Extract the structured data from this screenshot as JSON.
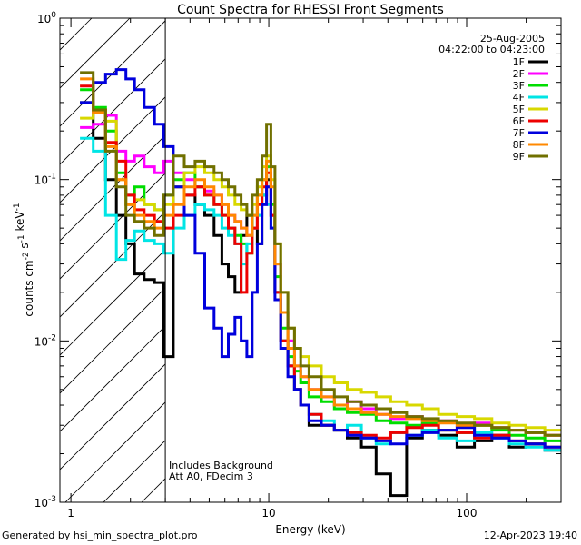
{
  "chart_data": {
    "type": "line",
    "title": "Count Spectra for RHESSI Front Segments",
    "xlabel": "Energy (keV)",
    "ylabel": "counts cm^-2 s^-1 keV^-1",
    "xscale": "log",
    "yscale": "log",
    "xlim": [
      0.88,
      300
    ],
    "ylim": [
      0.001,
      1.0
    ],
    "x_ticks": [
      {
        "value": 1,
        "label": "1"
      },
      {
        "value": 10,
        "label": "10"
      },
      {
        "value": 100,
        "label": "100"
      }
    ],
    "y_ticks": [
      {
        "value": 0.001,
        "mant": "10",
        "exp": "-3"
      },
      {
        "value": 0.01,
        "mant": "10",
        "exp": "-2"
      },
      {
        "value": 0.1,
        "mant": "10",
        "exp": "-1"
      },
      {
        "value": 1,
        "mant": "10",
        "exp": "0"
      }
    ],
    "date": "25-Aug-2005",
    "time_range": "04:22:00 to 04:23:00",
    "annotations": [
      "Includes Background",
      "Att A0, FDecim 3"
    ],
    "shaded_region_x": [
      0.88,
      3
    ],
    "series": [
      {
        "name": "1F",
        "color": "#000000",
        "x": [
          1.2,
          1.4,
          1.6,
          1.8,
          2.0,
          2.2,
          2.5,
          2.8,
          3.1,
          3.5,
          4,
          4.5,
          5,
          5.6,
          6,
          6.5,
          7,
          7.5,
          8,
          8.5,
          9,
          9.5,
          10,
          10.5,
          11,
          12,
          13,
          14,
          15,
          17,
          20,
          23,
          27,
          32,
          38,
          45,
          55,
          65,
          80,
          100,
          120,
          150,
          180,
          220,
          280
        ],
        "y": [
          0.3,
          0.18,
          0.1,
          0.06,
          0.04,
          0.026,
          0.024,
          0.023,
          0.008,
          0.09,
          0.08,
          0.07,
          0.06,
          0.045,
          0.03,
          0.025,
          0.02,
          0.045,
          0.06,
          0.05,
          0.04,
          0.08,
          0.1,
          0.06,
          0.02,
          0.01,
          0.007,
          0.005,
          0.004,
          0.003,
          0.003,
          0.0028,
          0.0025,
          0.0022,
          0.0015,
          0.0011,
          0.0025,
          0.0028,
          0.0026,
          0.0022,
          0.0024,
          0.0026,
          0.0022,
          0.0023,
          0.0021
        ]
      },
      {
        "name": "2F",
        "color": "#ff00ff",
        "x": [
          1.2,
          1.4,
          1.6,
          1.8,
          2.0,
          2.2,
          2.5,
          2.8,
          3.1,
          3.5,
          4,
          4.5,
          5,
          5.6,
          6,
          6.5,
          7,
          7.5,
          8,
          8.5,
          9,
          9.5,
          10,
          10.5,
          11,
          12,
          13,
          14,
          15,
          17,
          20,
          23,
          27,
          32,
          38,
          45,
          55,
          65,
          80,
          100,
          120,
          150,
          180,
          220,
          280
        ],
        "y": [
          0.21,
          0.22,
          0.25,
          0.15,
          0.13,
          0.14,
          0.12,
          0.11,
          0.13,
          0.11,
          0.1,
          0.09,
          0.085,
          0.08,
          0.07,
          0.06,
          0.055,
          0.05,
          0.045,
          0.05,
          0.06,
          0.07,
          0.09,
          0.06,
          0.03,
          0.015,
          0.01,
          0.007,
          0.006,
          0.005,
          0.0045,
          0.004,
          0.0042,
          0.0038,
          0.0035,
          0.0033,
          0.0034,
          0.0031,
          0.0032,
          0.003,
          0.0031,
          0.0029,
          0.0028,
          0.0027,
          0.0026
        ]
      },
      {
        "name": "3F",
        "color": "#00dd00",
        "x": [
          1.2,
          1.4,
          1.6,
          1.8,
          2.0,
          2.2,
          2.5,
          2.8,
          3.1,
          3.5,
          4,
          4.5,
          5,
          5.6,
          6,
          6.5,
          7,
          7.5,
          8,
          8.5,
          9,
          9.5,
          10,
          10.5,
          11,
          12,
          13,
          14,
          15,
          17,
          20,
          23,
          27,
          32,
          38,
          45,
          55,
          65,
          80,
          100,
          120,
          150,
          180,
          220,
          280
        ],
        "y": [
          0.36,
          0.28,
          0.2,
          0.11,
          0.08,
          0.09,
          0.07,
          0.065,
          0.08,
          0.1,
          0.11,
          0.09,
          0.08,
          0.07,
          0.06,
          0.05,
          0.045,
          0.04,
          0.035,
          0.06,
          0.08,
          0.1,
          0.12,
          0.07,
          0.025,
          0.012,
          0.008,
          0.0065,
          0.0055,
          0.0045,
          0.0042,
          0.0038,
          0.0036,
          0.0035,
          0.0032,
          0.0031,
          0.003,
          0.0031,
          0.0028,
          0.0027,
          0.003,
          0.0028,
          0.0026,
          0.0025,
          0.0024
        ]
      },
      {
        "name": "4F",
        "color": "#00e5e5",
        "x": [
          1.2,
          1.4,
          1.6,
          1.8,
          2.0,
          2.2,
          2.5,
          2.8,
          3.1,
          3.5,
          4,
          4.5,
          5,
          5.6,
          6,
          6.5,
          7,
          7.5,
          8,
          8.5,
          9,
          9.5,
          10,
          10.5,
          11,
          12,
          13,
          14,
          15,
          17,
          20,
          23,
          27,
          32,
          38,
          45,
          55,
          65,
          80,
          100,
          120,
          150,
          180,
          220,
          280
        ],
        "y": [
          0.18,
          0.15,
          0.06,
          0.032,
          0.042,
          0.048,
          0.042,
          0.04,
          0.035,
          0.05,
          0.06,
          0.07,
          0.065,
          0.06,
          0.05,
          0.045,
          0.04,
          0.03,
          0.04,
          0.05,
          0.06,
          0.08,
          0.07,
          0.05,
          0.02,
          0.01,
          0.007,
          0.005,
          0.004,
          0.0035,
          0.0032,
          0.0028,
          0.003,
          0.0025,
          0.0023,
          0.0027,
          0.0026,
          0.0028,
          0.0025,
          0.0024,
          0.0027,
          0.0025,
          0.0023,
          0.0022,
          0.0021
        ]
      },
      {
        "name": "5F",
        "color": "#d8d800",
        "x": [
          1.2,
          1.4,
          1.6,
          1.8,
          2.0,
          2.2,
          2.5,
          2.8,
          3.1,
          3.5,
          4,
          4.5,
          5,
          5.6,
          6,
          6.5,
          7,
          7.5,
          8,
          8.5,
          9,
          9.5,
          10,
          10.5,
          11,
          12,
          13,
          14,
          15,
          17,
          20,
          23,
          27,
          32,
          38,
          45,
          55,
          65,
          80,
          100,
          120,
          150,
          180,
          220,
          280
        ],
        "y": [
          0.24,
          0.27,
          0.23,
          0.1,
          0.07,
          0.075,
          0.07,
          0.065,
          0.07,
          0.09,
          0.11,
          0.12,
          0.11,
          0.1,
          0.09,
          0.08,
          0.07,
          0.065,
          0.06,
          0.07,
          0.09,
          0.12,
          0.14,
          0.1,
          0.04,
          0.02,
          0.012,
          0.009,
          0.008,
          0.007,
          0.006,
          0.0055,
          0.005,
          0.0048,
          0.0045,
          0.0042,
          0.004,
          0.0038,
          0.0035,
          0.0034,
          0.0033,
          0.0031,
          0.003,
          0.0029,
          0.0028
        ]
      },
      {
        "name": "6F",
        "color": "#ee0000",
        "x": [
          1.2,
          1.4,
          1.6,
          1.8,
          2.0,
          2.2,
          2.5,
          2.8,
          3.1,
          3.5,
          4,
          4.5,
          5,
          5.6,
          6,
          6.5,
          7,
          7.5,
          8,
          8.5,
          9,
          9.5,
          10,
          10.5,
          11,
          12,
          13,
          14,
          15,
          17,
          20,
          23,
          27,
          32,
          38,
          45,
          55,
          65,
          80,
          100,
          120,
          150,
          180,
          220,
          280
        ],
        "y": [
          0.38,
          0.27,
          0.17,
          0.13,
          0.08,
          0.065,
          0.06,
          0.055,
          0.05,
          0.06,
          0.08,
          0.09,
          0.08,
          0.07,
          0.06,
          0.05,
          0.04,
          0.02,
          0.035,
          0.05,
          0.07,
          0.09,
          0.11,
          0.06,
          0.02,
          0.01,
          0.007,
          0.005,
          0.004,
          0.0035,
          0.003,
          0.0028,
          0.0027,
          0.0026,
          0.0025,
          0.0027,
          0.0029,
          0.003,
          0.0028,
          0.0027,
          0.0025,
          0.0026,
          0.0024,
          0.0023,
          0.0022
        ]
      },
      {
        "name": "7F",
        "color": "#0000dd",
        "x": [
          1.2,
          1.4,
          1.6,
          1.8,
          2.0,
          2.2,
          2.5,
          2.8,
          3.1,
          3.5,
          4,
          4.5,
          5,
          5.6,
          6,
          6.5,
          7,
          7.5,
          8,
          8.5,
          9,
          9.5,
          10,
          10.5,
          11,
          12,
          13,
          14,
          15,
          17,
          20,
          23,
          27,
          32,
          38,
          45,
          55,
          65,
          80,
          100,
          120,
          150,
          180,
          220,
          280
        ],
        "y": [
          0.3,
          0.4,
          0.45,
          0.48,
          0.42,
          0.36,
          0.28,
          0.22,
          0.16,
          0.09,
          0.06,
          0.035,
          0.016,
          0.012,
          0.008,
          0.011,
          0.014,
          0.01,
          0.008,
          0.02,
          0.04,
          0.07,
          0.09,
          0.05,
          0.018,
          0.009,
          0.006,
          0.005,
          0.004,
          0.0032,
          0.003,
          0.0028,
          0.0026,
          0.0025,
          0.0024,
          0.0023,
          0.0026,
          0.0027,
          0.0028,
          0.0029,
          0.0026,
          0.0025,
          0.0024,
          0.0023,
          0.0022
        ]
      },
      {
        "name": "8F",
        "color": "#ff8800",
        "x": [
          1.2,
          1.4,
          1.6,
          1.8,
          2.0,
          2.2,
          2.5,
          2.8,
          3.1,
          3.5,
          4,
          4.5,
          5,
          5.6,
          6,
          6.5,
          7,
          7.5,
          8,
          8.5,
          9,
          9.5,
          10,
          10.5,
          11,
          12,
          13,
          14,
          15,
          17,
          20,
          23,
          27,
          32,
          38,
          45,
          55,
          65,
          80,
          100,
          120,
          150,
          180,
          220,
          280
        ],
        "y": [
          0.42,
          0.26,
          0.16,
          0.1,
          0.07,
          0.06,
          0.055,
          0.05,
          0.06,
          0.07,
          0.09,
          0.1,
          0.09,
          0.08,
          0.07,
          0.06,
          0.055,
          0.05,
          0.045,
          0.06,
          0.08,
          0.1,
          0.13,
          0.09,
          0.03,
          0.015,
          0.009,
          0.007,
          0.006,
          0.005,
          0.0045,
          0.004,
          0.0038,
          0.0036,
          0.0035,
          0.0034,
          0.0033,
          0.0032,
          0.0031,
          0.003,
          0.003,
          0.0029,
          0.0028,
          0.0027,
          0.0026
        ]
      },
      {
        "name": "9F",
        "color": "#707000",
        "x": [
          1.2,
          1.4,
          1.6,
          1.8,
          2.0,
          2.2,
          2.5,
          2.8,
          3.1,
          3.5,
          4,
          4.5,
          5,
          5.6,
          6,
          6.5,
          7,
          7.5,
          8,
          8.5,
          9,
          9.5,
          10,
          10.5,
          11,
          12,
          13,
          14,
          15,
          17,
          20,
          23,
          27,
          32,
          38,
          45,
          55,
          65,
          80,
          100,
          120,
          150,
          180,
          220,
          280
        ],
        "y": [
          0.46,
          0.27,
          0.15,
          0.09,
          0.06,
          0.055,
          0.05,
          0.045,
          0.08,
          0.14,
          0.12,
          0.13,
          0.12,
          0.11,
          0.1,
          0.09,
          0.08,
          0.07,
          0.06,
          0.08,
          0.1,
          0.14,
          0.22,
          0.12,
          0.04,
          0.02,
          0.012,
          0.009,
          0.007,
          0.006,
          0.005,
          0.0045,
          0.0042,
          0.004,
          0.0038,
          0.0036,
          0.0034,
          0.0033,
          0.0032,
          0.0031,
          0.003,
          0.0029,
          0.0028,
          0.0027,
          0.0026
        ]
      }
    ]
  },
  "footer": {
    "left": "Generated by hsi_min_spectra_plot.pro",
    "right": "12-Apr-2023 19:40"
  }
}
